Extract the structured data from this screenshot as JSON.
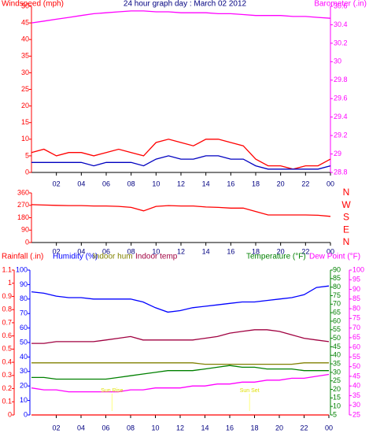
{
  "chart_data": [
    {
      "type": "line",
      "title": "24 hour graph day : March 02 2012",
      "x": [
        0,
        1,
        2,
        3,
        4,
        5,
        6,
        7,
        8,
        9,
        10,
        11,
        12,
        13,
        14,
        15,
        16,
        17,
        18,
        19,
        20,
        21,
        22,
        23,
        24
      ],
      "xlim": [
        0,
        24
      ],
      "xticks": [
        {
          "value": 2,
          "label": "02"
        },
        {
          "value": 4,
          "label": "04"
        },
        {
          "value": 6,
          "label": "06"
        },
        {
          "value": 8,
          "label": "08"
        },
        10,
        12,
        14,
        16,
        18,
        20,
        22,
        {
          "value": 24,
          "label": "00"
        }
      ],
      "axes": [
        {
          "label": "Windspeed (mph)",
          "color": "#ff0000",
          "lim": [
            0,
            50
          ],
          "ticks": [
            0,
            5,
            10,
            15,
            20,
            25,
            30,
            35,
            40,
            45,
            50
          ]
        },
        {
          "label": "Barometer (.in)",
          "color": "#ff00ff",
          "lim": [
            28.8,
            30.6
          ],
          "ticks": [
            28.8,
            29,
            29.2,
            29.4,
            29.6,
            29.8,
            30,
            30.2,
            30.4,
            30.6
          ]
        }
      ],
      "series": [
        {
          "axis": 0,
          "color": "#ff0000",
          "values": [
            6,
            7,
            5,
            6,
            6,
            5,
            6,
            7,
            6,
            5,
            9,
            10,
            9,
            8,
            10,
            10,
            9,
            8,
            4,
            2,
            2,
            1,
            2,
            2,
            4
          ]
        },
        {
          "axis": 0,
          "color": "#0000c0",
          "values": [
            3,
            3,
            3,
            3,
            3,
            2,
            3,
            3,
            3,
            2,
            4,
            5,
            4,
            4,
            5,
            5,
            4,
            4,
            2,
            1,
            1,
            1,
            1,
            1,
            2
          ]
        },
        {
          "axis": 1,
          "color": "#ff00ff",
          "values": [
            30.42,
            30.44,
            30.46,
            30.48,
            30.5,
            30.52,
            30.53,
            30.54,
            30.55,
            30.55,
            30.54,
            30.54,
            30.53,
            30.53,
            30.53,
            30.52,
            30.52,
            30.51,
            30.5,
            30.5,
            30.5,
            30.49,
            30.49,
            30.48,
            30.47
          ]
        }
      ]
    },
    {
      "type": "line",
      "x": [
        0,
        1,
        2,
        3,
        4,
        5,
        6,
        7,
        8,
        9,
        10,
        11,
        12,
        13,
        14,
        15,
        16,
        17,
        18,
        19,
        20,
        21,
        22,
        23,
        24
      ],
      "xlim": [
        0,
        24
      ],
      "xticks": [
        {
          "value": 2,
          "label": "02"
        },
        {
          "value": 4,
          "label": "04"
        },
        {
          "value": 6,
          "label": "06"
        },
        {
          "value": 8,
          "label": "08"
        },
        10,
        12,
        14,
        16,
        18,
        20,
        22,
        {
          "value": 24,
          "label": "00"
        }
      ],
      "axes": [
        {
          "color": "#ff0000",
          "lim": [
            0,
            360
          ],
          "ticks": [
            0,
            90,
            180,
            270,
            360
          ]
        },
        {
          "color": "#ff0000",
          "lim": [
            0,
            360
          ],
          "ticks": [
            {
              "value": 360,
              "label": "N"
            },
            {
              "value": 270,
              "label": "W"
            },
            {
              "value": 180,
              "label": "S"
            },
            {
              "value": 90,
              "label": "E"
            },
            {
              "value": 0,
              "label": "N"
            }
          ]
        }
      ],
      "series": [
        {
          "axis": 0,
          "color": "#ff0000",
          "values": [
            275,
            272,
            270,
            268,
            268,
            265,
            265,
            262,
            255,
            230,
            262,
            268,
            265,
            265,
            258,
            255,
            250,
            250,
            225,
            200,
            200,
            200,
            200,
            198,
            190
          ]
        }
      ]
    },
    {
      "type": "line",
      "x": [
        0,
        1,
        2,
        3,
        4,
        5,
        6,
        7,
        8,
        9,
        10,
        11,
        12,
        13,
        14,
        15,
        16,
        17,
        18,
        19,
        20,
        21,
        22,
        23,
        24
      ],
      "xlim": [
        0,
        24
      ],
      "xticks": [
        {
          "value": 2,
          "label": "02"
        },
        {
          "value": 4,
          "label": "04"
        },
        {
          "value": 6,
          "label": "06"
        },
        {
          "value": 8,
          "label": "08"
        },
        10,
        12,
        14,
        16,
        18,
        20,
        22,
        {
          "value": 24,
          "label": "00"
        }
      ],
      "axes": [
        {
          "color": "#ff0000",
          "lim": [
            0,
            1.1
          ],
          "ticks": [
            0,
            0.1,
            0.2,
            0.3,
            0.4,
            0.5,
            0.6,
            0.7,
            0.8,
            0.9,
            1,
            1.1
          ]
        },
        {
          "color": "#0000ff",
          "lim": [
            0,
            100
          ],
          "ticks": [
            0,
            10,
            20,
            30,
            40,
            50,
            60,
            70,
            80,
            90,
            100
          ]
        },
        {
          "color": "#008000",
          "lim": [
            5,
            90
          ],
          "ticks": [
            5,
            10,
            15,
            20,
            25,
            30,
            35,
            40,
            45,
            50,
            55,
            60,
            65,
            70,
            75,
            80,
            85,
            90
          ]
        },
        {
          "color": "#ff00ff",
          "lim": [
            25,
            100
          ],
          "ticks": [
            25,
            30,
            35,
            40,
            45,
            50,
            55,
            60,
            65,
            70,
            75,
            80,
            85,
            90,
            95,
            100
          ]
        }
      ],
      "series": [
        {
          "name": "Rainfall (.in)",
          "axis": 0,
          "color": "#ff0000",
          "values": [
            0,
            0,
            0,
            0,
            0,
            0,
            0,
            0,
            0,
            0,
            0,
            0,
            0,
            0,
            0,
            0,
            0,
            0,
            0,
            0,
            0,
            0,
            0,
            0,
            0
          ]
        },
        {
          "name": "Humidity (%)",
          "axis": 1,
          "color": "#0000ff",
          "values": [
            85,
            84,
            82,
            81,
            81,
            80,
            80,
            80,
            80,
            78,
            74,
            71,
            72,
            74,
            75,
            76,
            77,
            78,
            78,
            79,
            80,
            81,
            83,
            88,
            89
          ]
        },
        {
          "name": "Indoor hum",
          "axis": 1,
          "color": "#808000",
          "values": [
            36,
            36,
            36,
            36,
            36,
            36,
            36,
            36,
            36,
            36,
            36,
            36,
            36,
            36,
            35,
            35,
            35,
            35,
            35,
            35,
            35,
            35,
            36,
            36,
            36
          ]
        },
        {
          "name": "Indoor temp",
          "axis": 2,
          "color": "#a00040",
          "values": [
            47,
            47,
            48,
            48,
            48,
            48,
            49,
            50,
            51,
            49,
            49,
            49,
            49,
            49,
            50,
            51,
            53,
            54,
            55,
            55,
            54,
            52,
            50,
            49,
            48
          ]
        },
        {
          "name": "Temperature (°F)",
          "axis": 2,
          "color": "#008000",
          "values": [
            27,
            27,
            26,
            26,
            26,
            26,
            26,
            27,
            28,
            29,
            30,
            31,
            31,
            31,
            32,
            33,
            34,
            33,
            33,
            32,
            32,
            32,
            31,
            31,
            31
          ]
        },
        {
          "name": "Dew Point (°F)",
          "axis": 3,
          "color": "#ff00ff",
          "values": [
            39,
            38,
            38,
            37,
            37,
            37,
            37,
            37,
            38,
            38,
            39,
            39,
            39,
            40,
            40,
            41,
            41,
            42,
            42,
            43,
            43,
            44,
            44,
            45,
            46
          ]
        }
      ],
      "annotations": [
        {
          "text": "Sun Rise",
          "x": 6.5
        },
        {
          "text": "Sun Set",
          "x": 17.6
        }
      ]
    }
  ]
}
